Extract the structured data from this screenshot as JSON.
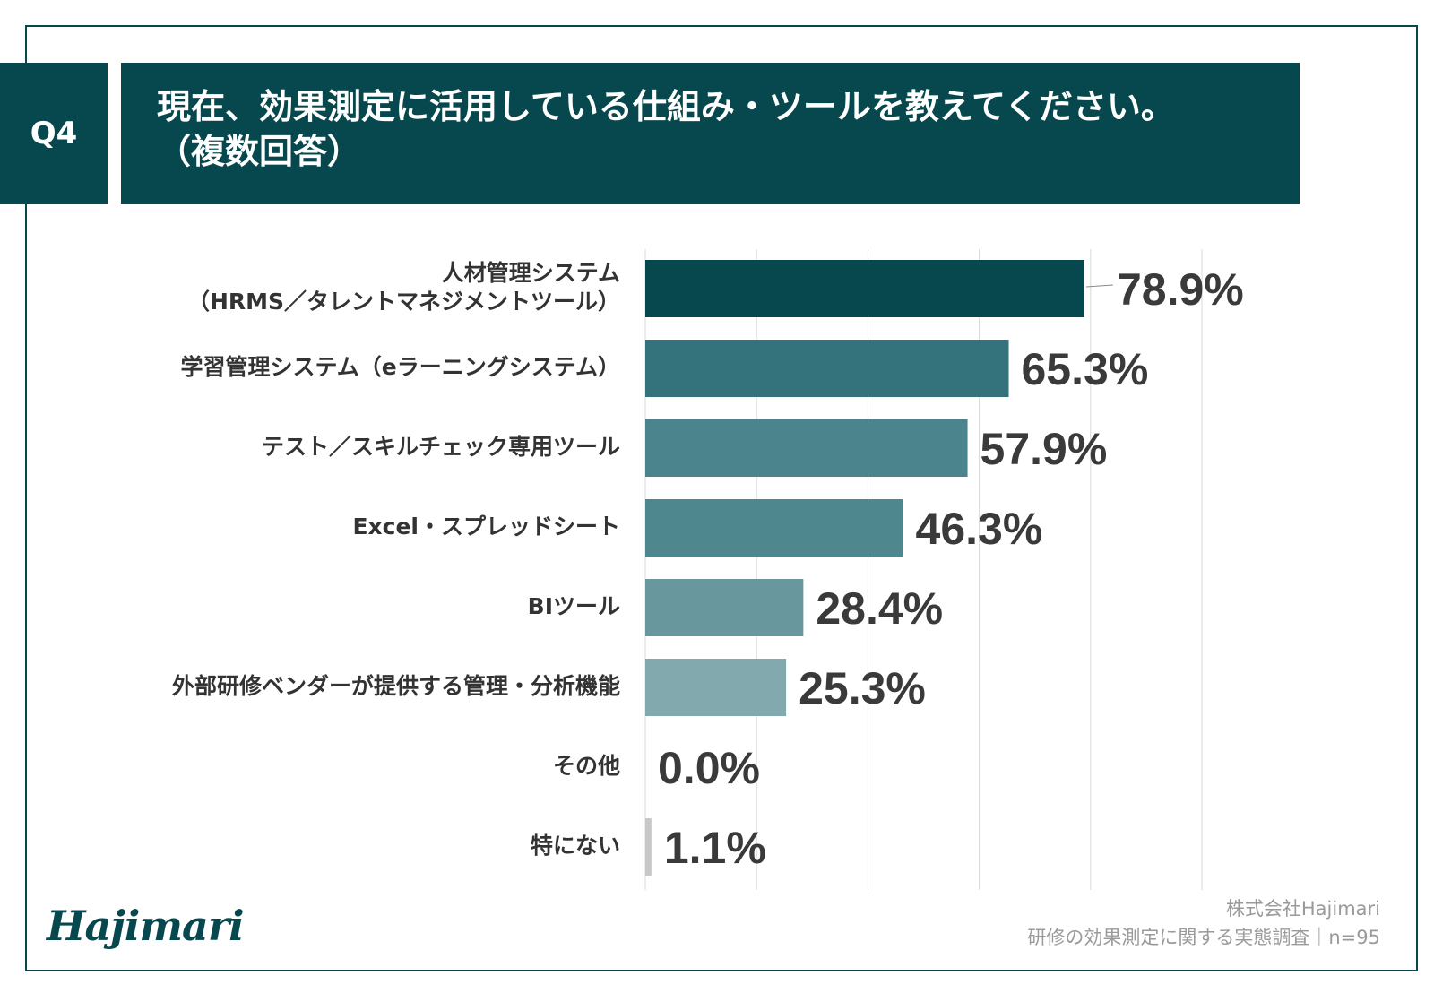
{
  "header": {
    "question_id": "Q4",
    "title_line1": "現在、効果測定に活用している仕組み・ツールを教えてください。",
    "title_line2": "（複数回答）"
  },
  "chart_data": {
    "type": "bar",
    "orientation": "horizontal",
    "categories": [
      [
        "人材管理システム",
        "（HRMS／タレントマネジメントツール）"
      ],
      [
        "学習管理システム（eラーニングシステム）"
      ],
      [
        "テスト／スキルチェック専用ツール"
      ],
      [
        "Excel・スプレッドシート"
      ],
      [
        "BIツール"
      ],
      [
        "外部研修ベンダーが提供する管理・分析機能"
      ],
      [
        "その他"
      ],
      [
        "特にない"
      ]
    ],
    "values": [
      78.9,
      65.3,
      57.9,
      46.3,
      28.4,
      25.3,
      0.0,
      1.1
    ],
    "value_labels": [
      "78.9%",
      "65.3%",
      "57.9%",
      "46.3%",
      "28.4%",
      "25.3%",
      "0.0%",
      "1.1%"
    ],
    "bar_colors": [
      "#07484f",
      "#34737b",
      "#4b848c",
      "#4f878f",
      "#69979e",
      "#82a9ae",
      "#c8c8c8",
      "#c8c8c8"
    ],
    "xlim": [
      0,
      100
    ],
    "grid_step": 20,
    "grid": true,
    "unit": "%"
  },
  "footer": {
    "logo_text": "Hajimari",
    "source_line1": "株式会社Hajimari",
    "source_line2": "研修の効果測定に関する実態調査｜n=95"
  },
  "colors": {
    "primary": "#07484f",
    "label_text": "#333333",
    "value_text": "#3a3a3a",
    "grid": "#d9d9d9",
    "source_text": "#9a9a9a"
  }
}
